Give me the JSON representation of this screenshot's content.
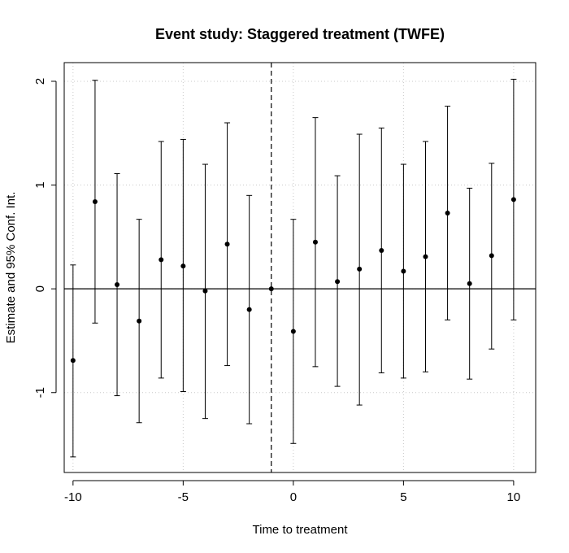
{
  "chart_data": {
    "type": "scatter",
    "title": "Event study: Staggered treatment (TWFE)",
    "xlabel": "Time to treatment",
    "ylabel": "Estimate and 95% Conf. Int.",
    "xlim": [
      -10.4,
      11.0
    ],
    "ylim": [
      -1.77,
      2.18
    ],
    "x_ticks": [
      -10,
      -5,
      0,
      5,
      10
    ],
    "y_ticks": [
      -1,
      0,
      1,
      2
    ],
    "grid": true,
    "reference_hline": 0,
    "reference_vline": -1,
    "points": [
      {
        "x": -10,
        "estimate": -0.69,
        "ci_low": -1.62,
        "ci_high": 0.23
      },
      {
        "x": -9,
        "estimate": 0.84,
        "ci_low": -0.33,
        "ci_high": 2.01
      },
      {
        "x": -8,
        "estimate": 0.04,
        "ci_low": -1.03,
        "ci_high": 1.11
      },
      {
        "x": -7,
        "estimate": -0.31,
        "ci_low": -1.29,
        "ci_high": 0.67
      },
      {
        "x": -6,
        "estimate": 0.28,
        "ci_low": -0.86,
        "ci_high": 1.42
      },
      {
        "x": -5,
        "estimate": 0.22,
        "ci_low": -0.99,
        "ci_high": 1.44
      },
      {
        "x": -4,
        "estimate": -0.02,
        "ci_low": -1.25,
        "ci_high": 1.2
      },
      {
        "x": -3,
        "estimate": 0.43,
        "ci_low": -0.74,
        "ci_high": 1.6
      },
      {
        "x": -2,
        "estimate": -0.2,
        "ci_low": -1.3,
        "ci_high": 0.9
      },
      {
        "x": -1,
        "estimate": 0.0,
        "ci_low": null,
        "ci_high": null
      },
      {
        "x": 0,
        "estimate": -0.41,
        "ci_low": -1.49,
        "ci_high": 0.67
      },
      {
        "x": 1,
        "estimate": 0.45,
        "ci_low": -0.75,
        "ci_high": 1.65
      },
      {
        "x": 2,
        "estimate": 0.07,
        "ci_low": -0.94,
        "ci_high": 1.09
      },
      {
        "x": 3,
        "estimate": 0.19,
        "ci_low": -1.12,
        "ci_high": 1.49
      },
      {
        "x": 4,
        "estimate": 0.37,
        "ci_low": -0.81,
        "ci_high": 1.55
      },
      {
        "x": 5,
        "estimate": 0.17,
        "ci_low": -0.86,
        "ci_high": 1.2
      },
      {
        "x": 6,
        "estimate": 0.31,
        "ci_low": -0.8,
        "ci_high": 1.42
      },
      {
        "x": 7,
        "estimate": 0.73,
        "ci_low": -0.3,
        "ci_high": 1.76
      },
      {
        "x": 8,
        "estimate": 0.05,
        "ci_low": -0.87,
        "ci_high": 0.97
      },
      {
        "x": 9,
        "estimate": 0.32,
        "ci_low": -0.58,
        "ci_high": 1.21
      },
      {
        "x": 10,
        "estimate": 0.86,
        "ci_low": -0.3,
        "ci_high": 2.02
      }
    ]
  }
}
